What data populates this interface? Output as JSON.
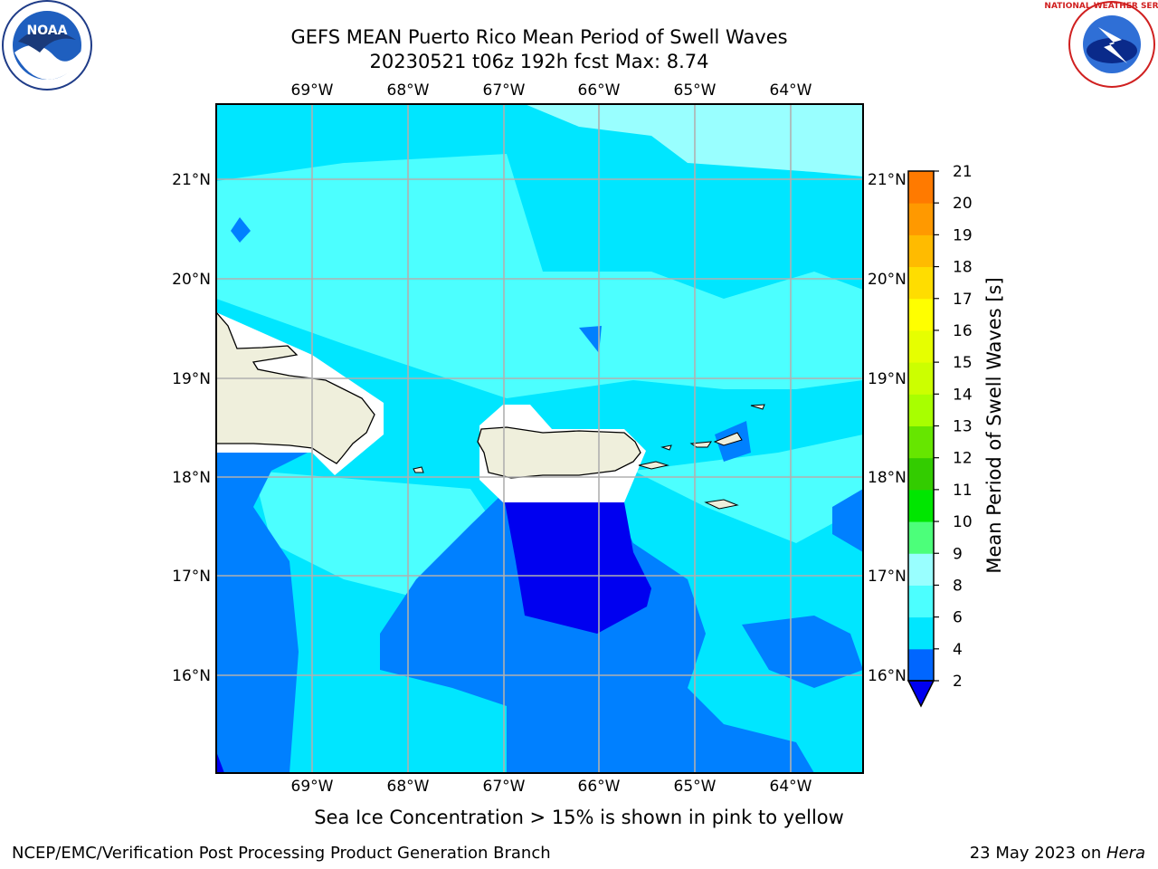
{
  "title_line1": "GEFS MEAN Puerto Rico Mean Period of Swell Waves",
  "title_line2": "20230521 t06z 192h fcst   Max: 8.74",
  "caption": "Sea Ice Concentration > 15% is shown in pink to yellow",
  "footer_left": "NCEP/EMC/Verification Post Processing Product Generation Branch",
  "footer_right_date": "23 May 2023 on ",
  "footer_right_host": "Hera",
  "logos": {
    "left": "noaa-logo",
    "right": "nws-logo",
    "noaa_text": "NOAA",
    "nws_text": "NATIONAL WEATHER SERVICE"
  },
  "map": {
    "lon_labels": [
      "69°W",
      "68°W",
      "67°W",
      "66°W",
      "65°W",
      "64°W"
    ],
    "lat_labels": [
      "21°N",
      "20°N",
      "19°N",
      "18°N",
      "17°N",
      "16°N"
    ]
  },
  "colorbar": {
    "label": "Mean Period of Swell Waves [s]",
    "ticks": [
      "2",
      "4",
      "6",
      "8",
      "9",
      "10",
      "11",
      "12",
      "13",
      "14",
      "15",
      "16",
      "17",
      "18",
      "19",
      "20",
      "21"
    ],
    "colors": [
      "#0000f0",
      "#0066ff",
      "#0080ff",
      "#00e6ff",
      "#4cffff",
      "#99ffff",
      "#4cff7a",
      "#00e600",
      "#33cc00",
      "#66e600",
      "#a8ff00",
      "#ccff00",
      "#e6ff00",
      "#ffff00",
      "#ffdd00",
      "#ffbb00",
      "#ff9900",
      "#ff7a00",
      "#ff5500",
      "#ff2a00",
      "#ff0000"
    ]
  }
}
